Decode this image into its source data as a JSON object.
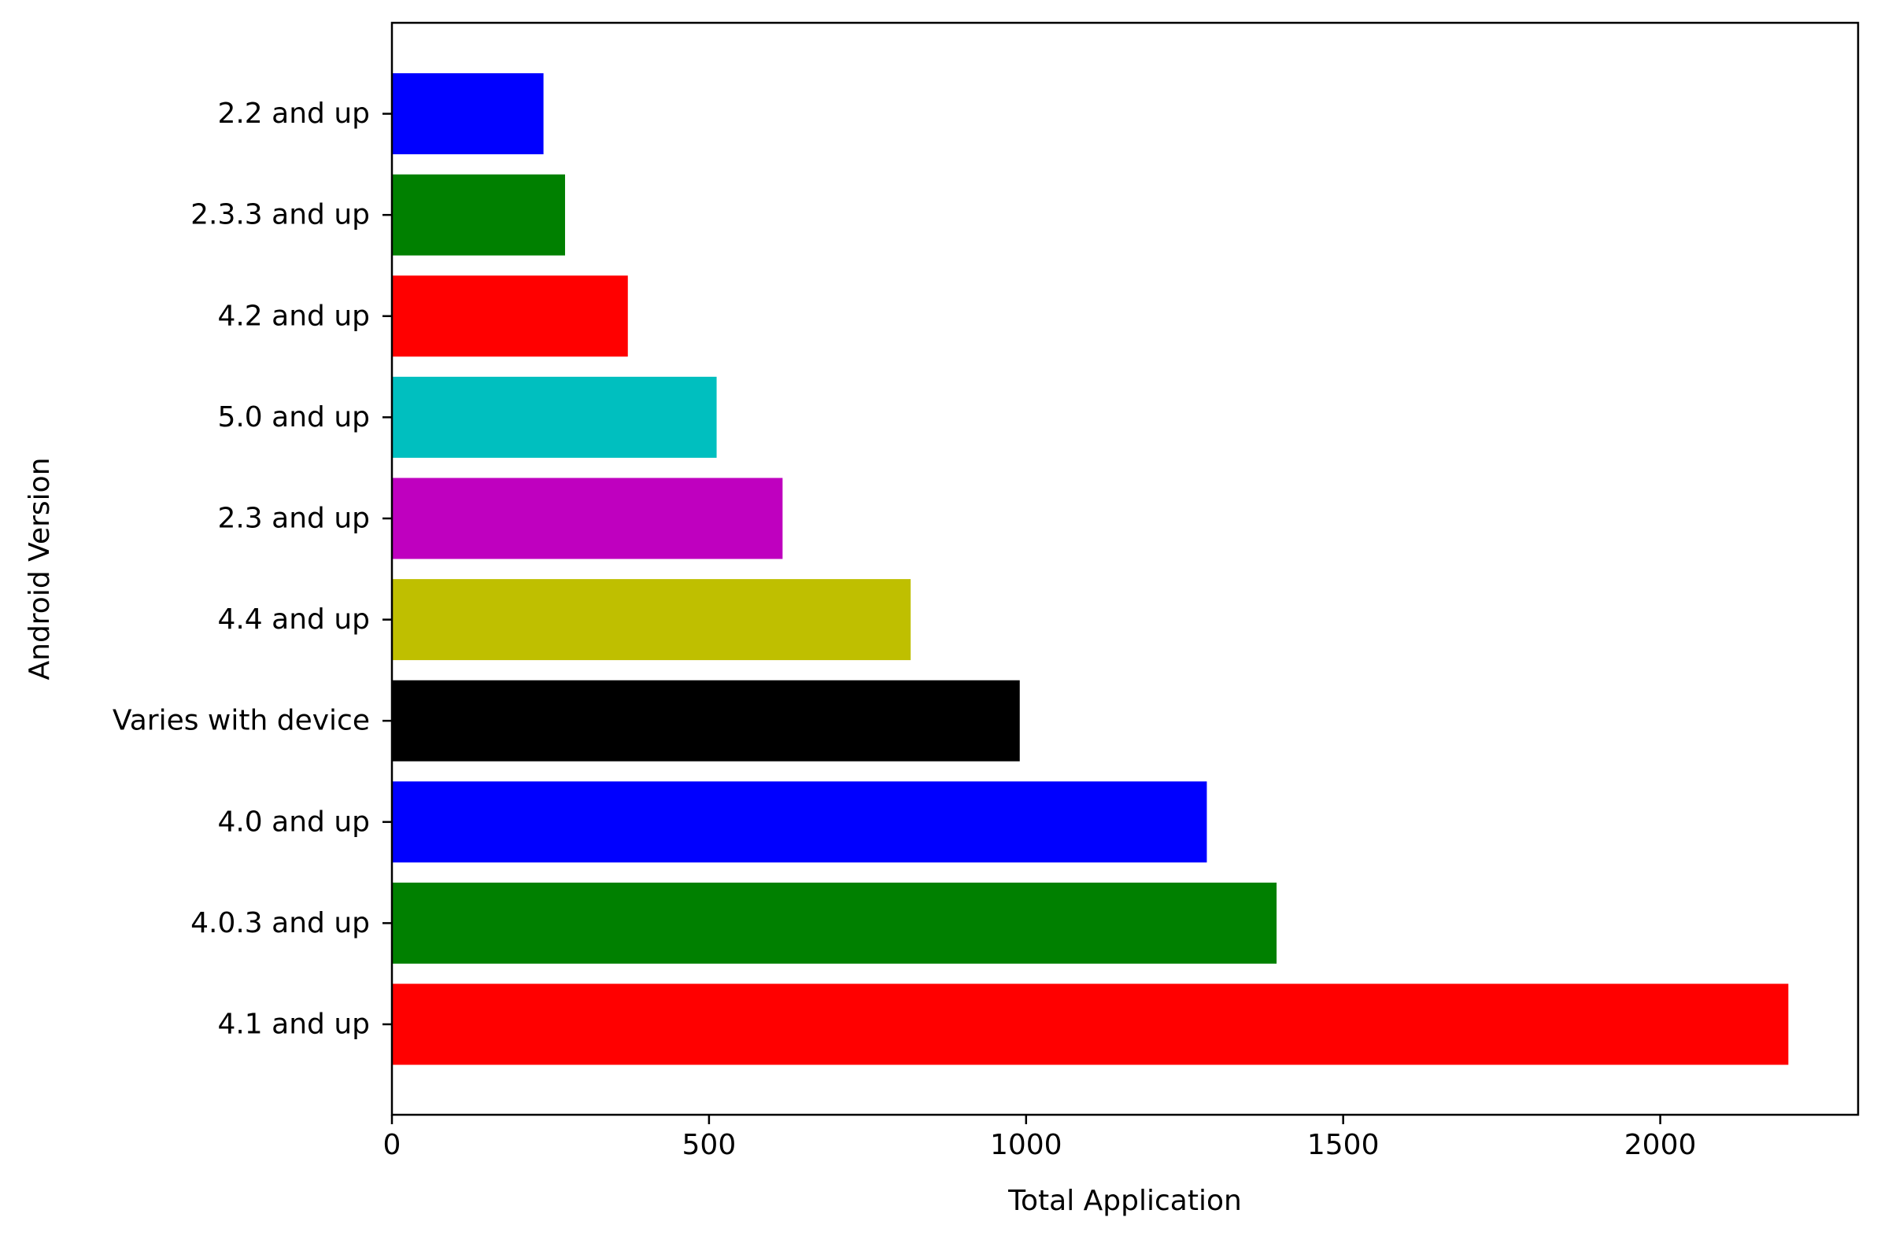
{
  "chart_data": {
    "type": "bar",
    "orientation": "horizontal",
    "title": "",
    "xlabel": "Total Application",
    "ylabel": "Android Version",
    "categories": [
      "4.1 and up",
      "4.0.3 and up",
      "4.0 and up",
      "Varies with device",
      "4.4 and up",
      "2.3 and up",
      "5.0 and up",
      "4.2 and up",
      "2.3.3 and up",
      "2.2 and up"
    ],
    "values": [
      2202,
      1395,
      1285,
      990,
      818,
      616,
      512,
      372,
      273,
      239
    ],
    "colors": [
      "#ff0000",
      "#008000",
      "#0000ff",
      "#000000",
      "#bfbf00",
      "#bf00bf",
      "#00bfbf",
      "#ff0000",
      "#008000",
      "#0000ff"
    ],
    "xlim": [
      0,
      2312
    ],
    "xticks": [
      0,
      500,
      1000,
      1500,
      2000
    ],
    "grid": false,
    "legend": "none"
  }
}
